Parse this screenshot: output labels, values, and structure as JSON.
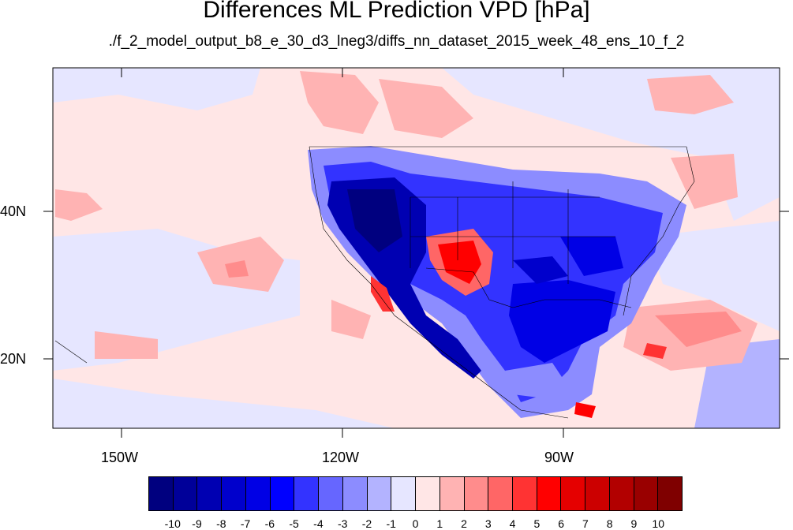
{
  "title": "Differences ML Prediction VPD [hPa]",
  "subtitle": "./f_2_model_output_b8_e_30_d3_lneg3/diffs_nn_dataset_2015_week_48_ens_10_f_2",
  "lat_labels": [
    "40N",
    "20N"
  ],
  "lon_labels": [
    "150W",
    "120W",
    "90W"
  ],
  "colorbar": {
    "labels": [
      "-10",
      "-9",
      "-8",
      "-7",
      "-6",
      "-5",
      "-4",
      "-3",
      "-2",
      "-1",
      "0",
      "1",
      "2",
      "3",
      "4",
      "5",
      "6",
      "7",
      "8",
      "9",
      "10"
    ],
    "colors": [
      "#00007f",
      "#000099",
      "#0000b2",
      "#0000cc",
      "#0000e5",
      "#0000ff",
      "#3333ff",
      "#6666ff",
      "#8c8cff",
      "#b3b3ff",
      "#e6e6ff",
      "#ffe6e6",
      "#ffb3b3",
      "#ff8c8c",
      "#ff6666",
      "#ff3333",
      "#ff0000",
      "#e50000",
      "#cc0000",
      "#b20000",
      "#990000",
      "#7f0000"
    ]
  }
}
